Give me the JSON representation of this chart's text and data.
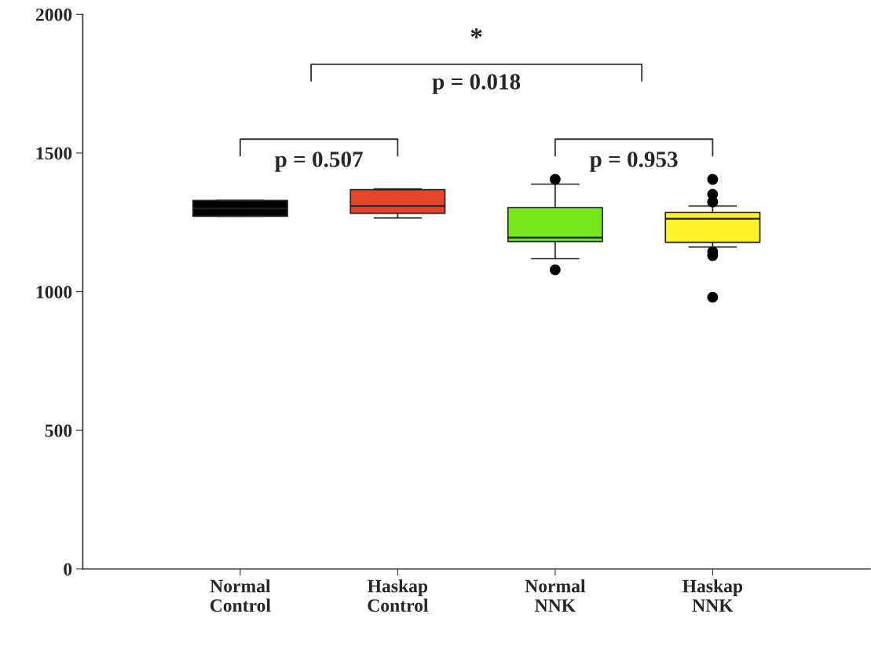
{
  "chart_data": {
    "type": "box",
    "categories": [
      "Normal\nControl",
      "Haskap\nControl",
      "Normal\nNNK",
      "Haskap\nNNK"
    ],
    "colors": [
      "#000000",
      "#e8442c",
      "#77e81a",
      "#fff22c"
    ],
    "boxes": [
      {
        "low": 1272,
        "q1": 1272,
        "median": 1300,
        "q3": 1329,
        "high": 1329
      },
      {
        "low": 1266,
        "q1": 1283,
        "median": 1309,
        "q3": 1368,
        "high": 1371
      },
      {
        "low": 1119,
        "q1": 1181,
        "median": 1195,
        "q3": 1303,
        "high": 1388,
        "outliers": [
          1405,
          1079
        ]
      },
      {
        "low": 1161,
        "q1": 1178,
        "median": 1263,
        "q3": 1286,
        "high": 1309,
        "outliers": [
          1405,
          1351,
          1323,
          1144,
          1130,
          980
        ]
      }
    ],
    "ylim": [
      0,
      2000
    ],
    "yticks": [
      0,
      500,
      1000,
      1500,
      2000
    ],
    "grid": false,
    "annotations": [
      "*",
      "p = 0.018",
      "p = 0.507",
      "p = 0.953"
    ]
  }
}
